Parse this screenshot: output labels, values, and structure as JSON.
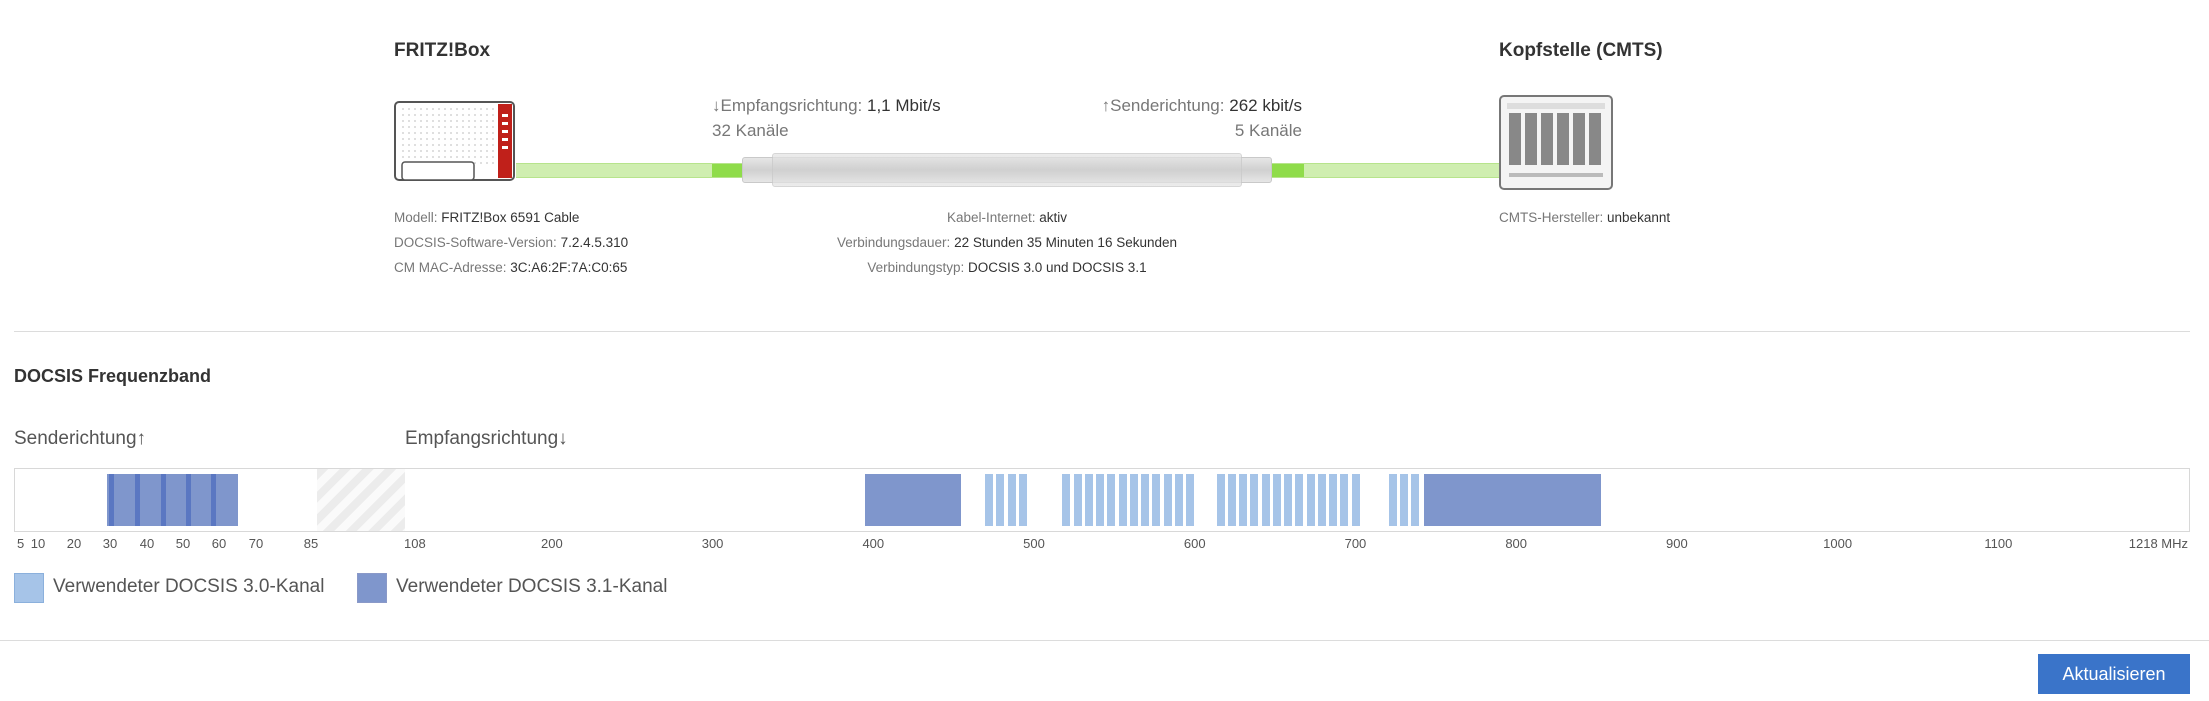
{
  "fritzbox": {
    "title": "FRITZ!Box",
    "model_label": "Modell:",
    "model_value": "FRITZ!Box 6591 Cable",
    "docsis_label": "DOCSIS-Software-Version:",
    "docsis_value": "7.2.4.5.310",
    "mac_label": "CM MAC-Adresse:",
    "mac_value": "3C:A6:2F:7A:C0:65"
  },
  "cmts": {
    "title": "Kopfstelle (CMTS)",
    "vendor_label": "CMTS-Hersteller:",
    "vendor_value": "unbekannt"
  },
  "downstream": {
    "label": "↓Empfangsrichtung:",
    "rate": "1,1 Mbit/s",
    "channels": "32 Kanäle"
  },
  "upstream": {
    "label": "↑Senderichtung:",
    "rate": "262 kbit/s",
    "channels": "5 Kanäle"
  },
  "connection": {
    "internet_label": "Kabel-Internet:",
    "internet_value": "aktiv",
    "duration_label": "Verbindungsdauer:",
    "duration_value": "22 Stunden 35 Minuten 16 Sekunden",
    "type_label": "Verbindungstyp:",
    "type_value": "DOCSIS 3.0 und DOCSIS 3.1"
  },
  "band": {
    "title": "DOCSIS Frequenzband",
    "up_label": "Senderichtung↑",
    "down_label": "Empfangsrichtung↓",
    "up_ticks": [
      "5",
      "10",
      "20",
      "30",
      "40",
      "50",
      "60",
      "70",
      "85"
    ],
    "down_ticks": [
      "108",
      "200",
      "300",
      "400",
      "500",
      "600",
      "700",
      "800",
      "900",
      "1000",
      "1100",
      "1218 MHz"
    ],
    "up_range_mhz": [
      5,
      85
    ],
    "down_range_mhz": [
      108,
      1218
    ],
    "up_docsis31_block_mhz": [
      29,
      65
    ],
    "up_docsis30_channel_mhz": [
      29.5,
      36.5,
      43.5,
      50.5,
      57.5
    ],
    "down_docsis31_blocks_mhz": [
      [
        394,
        454
      ],
      [
        742,
        852
      ]
    ],
    "down_docsis30_channels_mhz": [
      [
        469,
        474
      ],
      [
        476,
        481
      ],
      [
        483,
        488
      ],
      [
        490,
        495
      ],
      [
        517,
        522
      ],
      [
        524,
        529
      ],
      [
        531,
        536
      ],
      [
        538,
        543
      ],
      [
        545,
        550
      ],
      [
        552,
        557
      ],
      [
        559,
        564
      ],
      [
        566,
        571
      ],
      [
        573,
        578
      ],
      [
        580,
        585
      ],
      [
        587,
        592
      ],
      [
        594,
        599
      ],
      [
        613,
        618
      ],
      [
        620,
        625
      ],
      [
        627,
        632
      ],
      [
        634,
        639
      ],
      [
        641,
        646
      ],
      [
        648,
        653
      ],
      [
        655,
        660
      ],
      [
        662,
        667
      ],
      [
        669,
        674
      ],
      [
        676,
        681
      ],
      [
        683,
        688
      ],
      [
        690,
        695
      ],
      [
        697,
        702
      ],
      [
        720,
        725
      ],
      [
        727,
        732
      ],
      [
        734,
        739
      ]
    ]
  },
  "legend": {
    "docsis30": "Verwendeter DOCSIS 3.0-Kanal",
    "docsis31": "Verwendeter DOCSIS 3.1-Kanal",
    "color30": "#a6c4e8",
    "color31": "#7f96cc"
  },
  "button": {
    "refresh_label": "Aktualisieren"
  }
}
